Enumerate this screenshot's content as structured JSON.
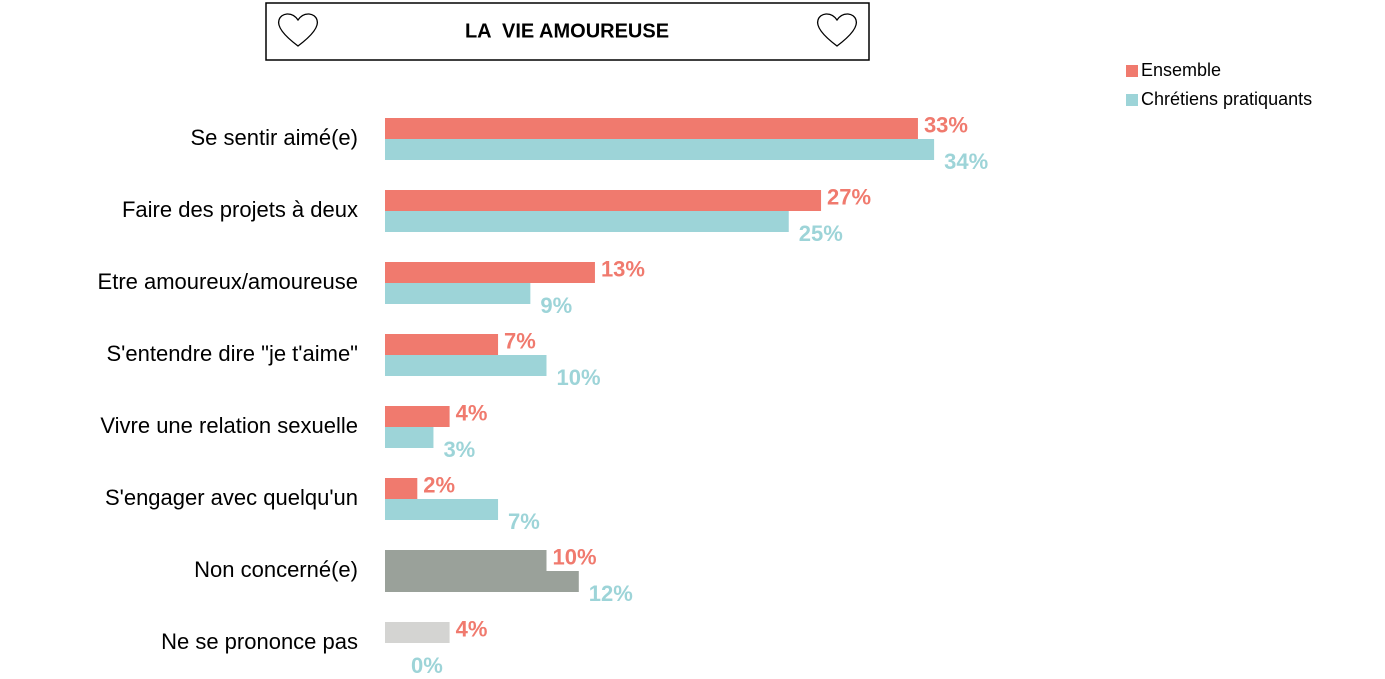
{
  "chart_data": {
    "type": "hbar",
    "title": "LA  VIE AMOUREUSE",
    "categories": [
      "Se sentir aimé(e)",
      "Faire des projets à deux",
      "Etre amoureux/amoureuse",
      "S'entendre dire \"je t'aime\"",
      "Vivre une relation sexuelle",
      "S'engager avec quelqu'un",
      "Non concerné(e)",
      "Ne se prononce pas"
    ],
    "series": [
      {
        "name": "Ensemble",
        "color": "#f07a6e",
        "colors": [
          "#f07a6e",
          "#f07a6e",
          "#f07a6e",
          "#f07a6e",
          "#f07a6e",
          "#f07a6e",
          "#9aa19a",
          "#d4d4d2"
        ],
        "values": [
          33,
          27,
          13,
          7,
          4,
          2,
          10,
          4
        ],
        "value_labels": [
          "33%",
          "27%",
          "13%",
          "7%",
          "4%",
          "2%",
          "10%",
          "4%"
        ]
      },
      {
        "name": "Chrétiens pratiquants",
        "color": "#9dd4d8",
        "colors": [
          "#9dd4d8",
          "#9dd4d8",
          "#9dd4d8",
          "#9dd4d8",
          "#9dd4d8",
          "#9dd4d8",
          "#9aa19a",
          "#d4d4d2"
        ],
        "values": [
          34,
          25,
          9,
          10,
          3,
          7,
          12,
          0
        ],
        "value_labels": [
          "34%",
          "25%",
          "9%",
          "10%",
          "3%",
          "7%",
          "12%",
          "0%"
        ]
      }
    ],
    "legend": "top-right"
  }
}
